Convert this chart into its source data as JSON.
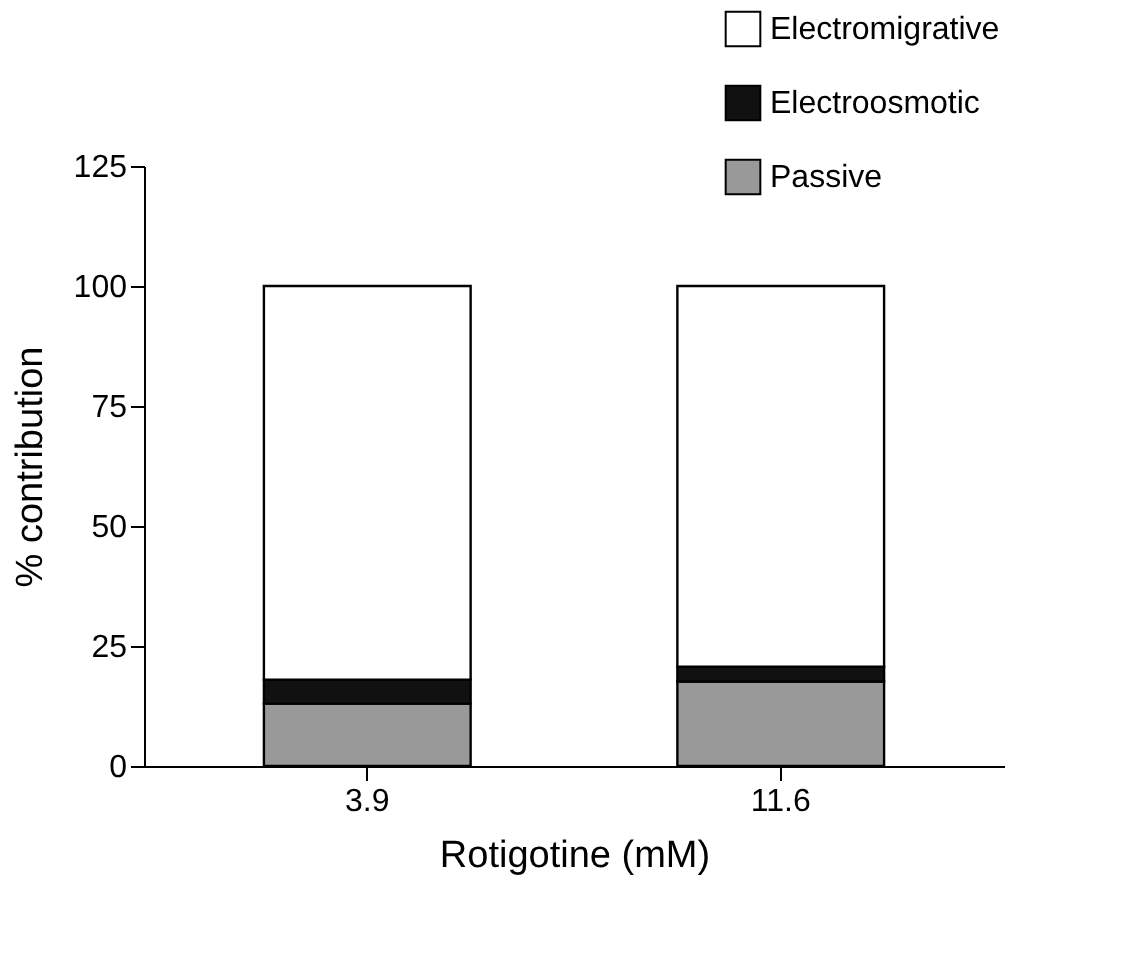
{
  "chart_data": {
    "type": "bar",
    "stacked": true,
    "categories": [
      "3.9",
      "11.6"
    ],
    "xlabel": "Rotigotine (mM)",
    "ylabel": "% contribution",
    "ylim": [
      0,
      125
    ],
    "yticks": [
      0,
      25,
      50,
      75,
      100,
      125
    ],
    "grid": false,
    "legend": "top right",
    "series": [
      {
        "name": "Passive",
        "color": "#999999",
        "values": [
          13,
          17.6
        ]
      },
      {
        "name": "Electroosmotic",
        "color": "#111111",
        "values": [
          5,
          3.1
        ]
      },
      {
        "name": "Electromigrative",
        "color": "#ffffff",
        "values": [
          82,
          79.3
        ]
      }
    ]
  }
}
